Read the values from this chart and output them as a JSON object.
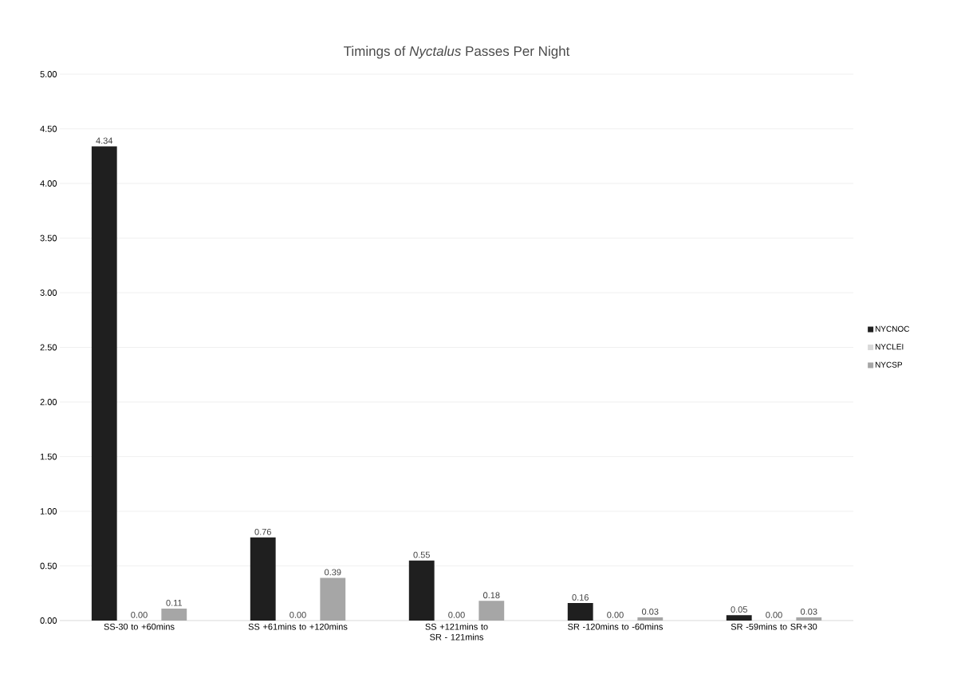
{
  "chart_data": {
    "type": "bar",
    "title": "Timings of *Nyctalus* Passes Per Night",
    "categories": [
      "SS-30 to +60mins",
      "SS +61mins to +120mins",
      "SS +121mins to SR - 121mins",
      "SR -120mins to -60mins",
      "SR -59mins to SR+30"
    ],
    "series": [
      {
        "name": "NYCNOC",
        "color": "#1f1f1f",
        "values": [
          4.34,
          0.76,
          0.55,
          0.16,
          0.05
        ],
        "value_labels": [
          "4.34",
          "0.76",
          "0.55",
          "0.16",
          "0.05"
        ]
      },
      {
        "name": "NYCLEI",
        "color": "#d9d9d9",
        "values": [
          0,
          0,
          0,
          0,
          0
        ],
        "value_labels": [
          "0.00",
          "0.00",
          "0.00",
          "0.00",
          "0.00"
        ]
      },
      {
        "name": "NYCSP",
        "color": "#a6a6a6",
        "values": [
          0.11,
          0.39,
          0.18,
          0.03,
          0.03
        ],
        "value_labels": [
          "0.11",
          "0.39",
          "0.18",
          "0.03",
          "0.03"
        ]
      }
    ],
    "ylim": [
      0,
      5
    ],
    "yticks": [
      {
        "value": 0,
        "label": "0.00"
      },
      {
        "value": 0.5,
        "label": "0.50"
      },
      {
        "value": 1,
        "label": "1.00"
      },
      {
        "value": 1.5,
        "label": "1.50"
      },
      {
        "value": 2,
        "label": "2.00"
      },
      {
        "value": 2.5,
        "label": "2.50"
      },
      {
        "value": 3,
        "label": "3.00"
      },
      {
        "value": 3.5,
        "label": "3.50"
      },
      {
        "value": 4,
        "label": "4.00"
      },
      {
        "value": 4.5,
        "label": "4.50"
      },
      {
        "value": 5,
        "label": "5.00"
      }
    ],
    "grid": "y",
    "legend": "right"
  }
}
